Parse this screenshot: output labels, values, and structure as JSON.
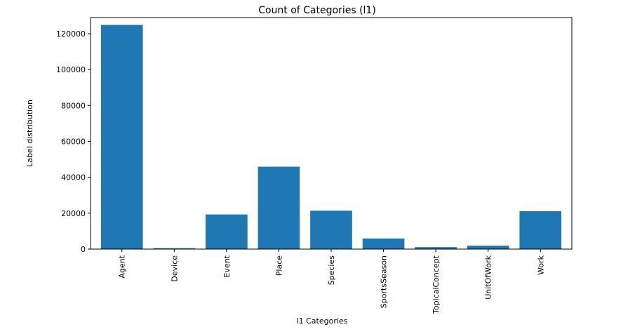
{
  "chart_data": {
    "type": "bar",
    "title": "Count of Categories (l1)",
    "xlabel": "l1 Categories",
    "ylabel": "Label distribution",
    "categories": [
      "Agent",
      "Device",
      "Event",
      "Place",
      "Species",
      "SportsSeason",
      "TopicalConcept",
      "UnitOfWork",
      "Work"
    ],
    "values": [
      124900,
      500,
      19300,
      45900,
      21400,
      5900,
      1100,
      1900,
      21100
    ],
    "ylim": [
      0,
      129000
    ],
    "yticks": [
      0,
      20000,
      40000,
      60000,
      80000,
      100000,
      120000
    ],
    "ytick_labels": [
      "0",
      "20000",
      "40000",
      "60000",
      "80000",
      "100000",
      "120000"
    ],
    "bar_color": "#1f77b4",
    "grid": false,
    "legend": "none"
  }
}
